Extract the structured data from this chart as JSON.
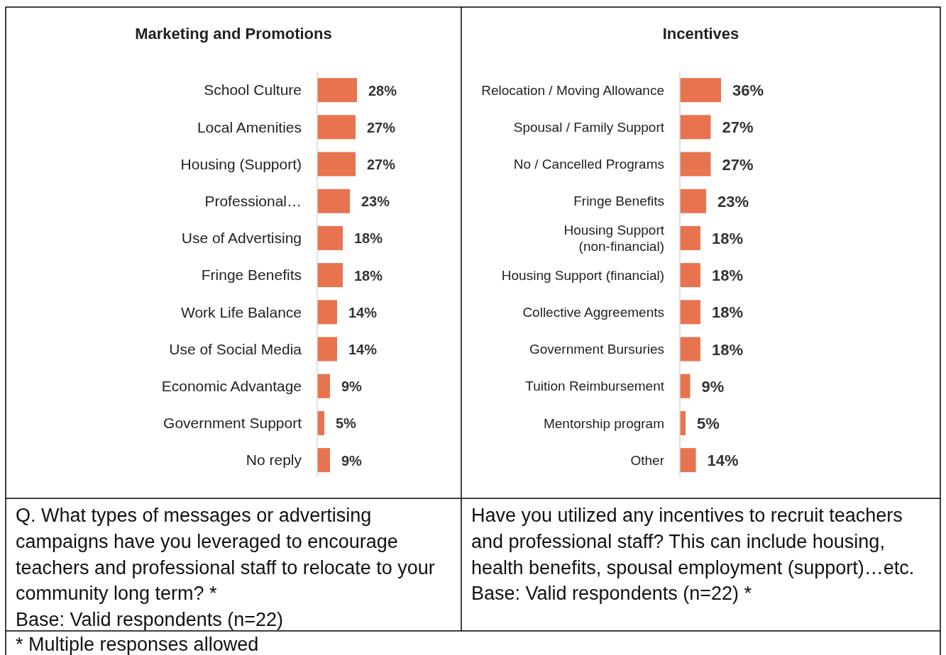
{
  "chart_data": [
    {
      "type": "bar",
      "orientation": "horizontal",
      "title": "Marketing and Promotions",
      "categories": [
        "School Culture",
        "Local Amenities",
        "Housing (Support)",
        "Professional…",
        "Use of Advertising",
        "Fringe Benefits",
        "Work Life Balance",
        "Use of Social Media",
        "Economic Advantage",
        "Government Support",
        "No reply"
      ],
      "values": [
        28,
        27,
        27,
        23,
        18,
        18,
        14,
        14,
        9,
        5,
        9
      ],
      "value_labels": [
        "28%",
        "27%",
        "27%",
        "23%",
        "18%",
        "18%",
        "14%",
        "14%",
        "9%",
        "5%",
        "9%"
      ],
      "color": "#e8734f",
      "annotations": [
        "Q. What types of messages or advertising campaigns have you leveraged to encourage teachers and professional staff to relocate to your community long term? *",
        "Base: Valid respondents (n=22)"
      ]
    },
    {
      "type": "bar",
      "orientation": "horizontal",
      "title": "Incentives",
      "categories": [
        "Relocation / Moving Allowance",
        "Spousal / Family Support",
        "No / Cancelled Programs",
        "Fringe Benefits",
        "Housing Support (non-financial)",
        "Housing Support (financial)",
        "Collective Aggreements",
        "Government Bursuries",
        "Tuition Reimbursement",
        "Mentorship program",
        "Other"
      ],
      "values": [
        36,
        27,
        27,
        23,
        18,
        18,
        18,
        18,
        9,
        5,
        14
      ],
      "value_labels": [
        "36%",
        "27%",
        "27%",
        "23%",
        "18%",
        "18%",
        "18%",
        "18%",
        "9%",
        "5%",
        "14%"
      ],
      "color": "#e8734f",
      "annotations": [
        "Have you utilized any incentives to recruit teachers and professional staff? This can include housing, health benefits, spousal employment (support)…etc.",
        "Base: Valid respondents (n=22) *",
        "* Multiple responses allowed"
      ]
    }
  ]
}
